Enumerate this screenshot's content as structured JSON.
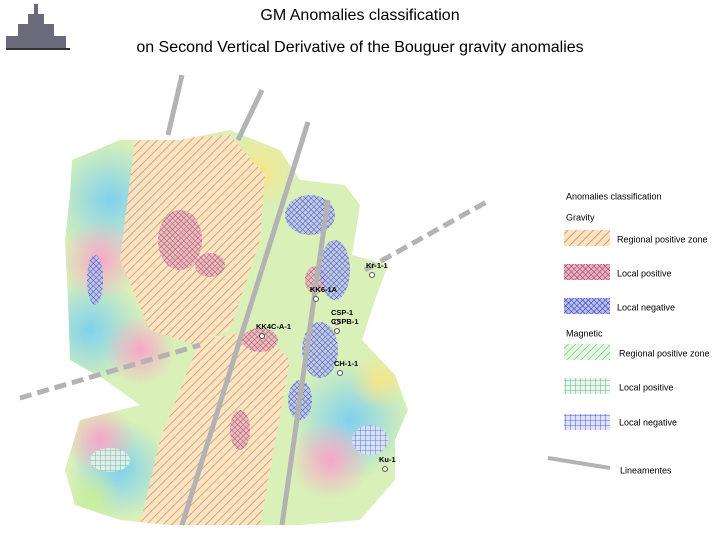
{
  "header": {
    "title": "GM Anomalies classification",
    "subtitle": "on Second Vertical Derivative of the Bouguer gravity anomalies"
  },
  "legend": {
    "title": "Anomalies classification",
    "groups": [
      {
        "title": "Gravity",
        "items": [
          "Regional positive zone",
          "Local positive",
          "Local negative"
        ]
      },
      {
        "title": "Magnetic",
        "items": [
          "Regional positive zone",
          "Local positive",
          "Local negative"
        ]
      }
    ],
    "lineaments": "Lineamentes"
  },
  "map": {
    "wells": [
      "Kr-1-1",
      "KK6-1A",
      "CSP-1",
      "CSPB-1",
      "KK4C-A-1",
      "CH-1-1",
      "Ku-1"
    ]
  }
}
